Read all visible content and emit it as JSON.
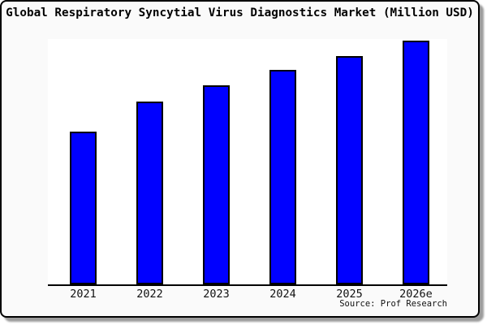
{
  "chart_data": {
    "type": "bar",
    "title": "Global Respiratory Syncytial Virus Diagnostics Market (Million USD)",
    "categories": [
      "2021",
      "2022",
      "2023",
      "2024",
      "2025",
      "2026e"
    ],
    "values": [
      62.7,
      75.0,
      81.5,
      87.9,
      93.7,
      100.0
    ],
    "values_note": "relative scale, max bar = 100; no y-axis tick labels shown",
    "xlabel": "",
    "ylabel": "",
    "ylim": [
      0,
      100.7
    ],
    "grid": false,
    "legend": false,
    "y_axis_labels_visible": false,
    "source_label": "Source: Prof Research",
    "colors": {
      "bar_fill": "#0000ff",
      "bar_border": "#000000",
      "card_background": "#fafafa",
      "plot_background": "#ffffff",
      "axis_line": "#000000",
      "text": "#000000"
    }
  }
}
